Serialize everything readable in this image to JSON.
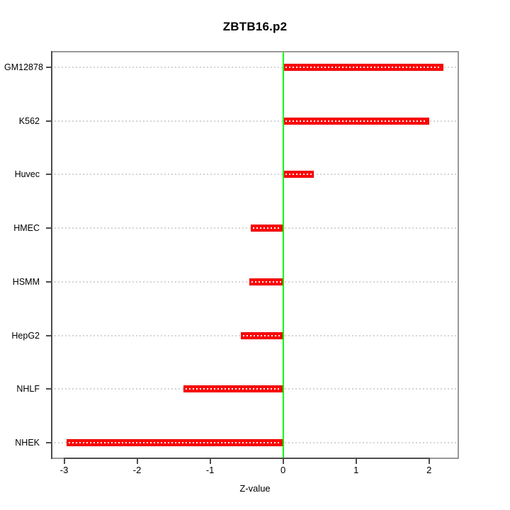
{
  "title": "ZBTB16.p2",
  "chart_data": {
    "type": "bar",
    "orientation": "horizontal",
    "title": "ZBTB16.p2",
    "xlabel": "Z-value",
    "ylabel": "",
    "categories": [
      "GM12878",
      "K562",
      "Huvec",
      "HMEC",
      "HSMM",
      "HepG2",
      "NHLF",
      "NHEK"
    ],
    "values": [
      2.2,
      2.0,
      0.42,
      -0.44,
      -0.46,
      -0.58,
      -1.37,
      -2.97
    ],
    "xticks": [
      -3,
      -2,
      -1,
      0,
      1,
      2
    ],
    "xlim": [
      -3.18,
      2.41
    ],
    "zero_reference_line": 0,
    "grid": "horizontal dotted line per category",
    "legend_position": "none",
    "colors": {
      "bar": "#ff0000",
      "bar_border": "#e60000",
      "bar_center_dots": "#ffffff",
      "zero_line": "#00ff00",
      "grid": "#d4d4d4",
      "axis": "#4d4d4d",
      "box": "#999999",
      "text": "#000000",
      "background": "#ffffff"
    }
  }
}
